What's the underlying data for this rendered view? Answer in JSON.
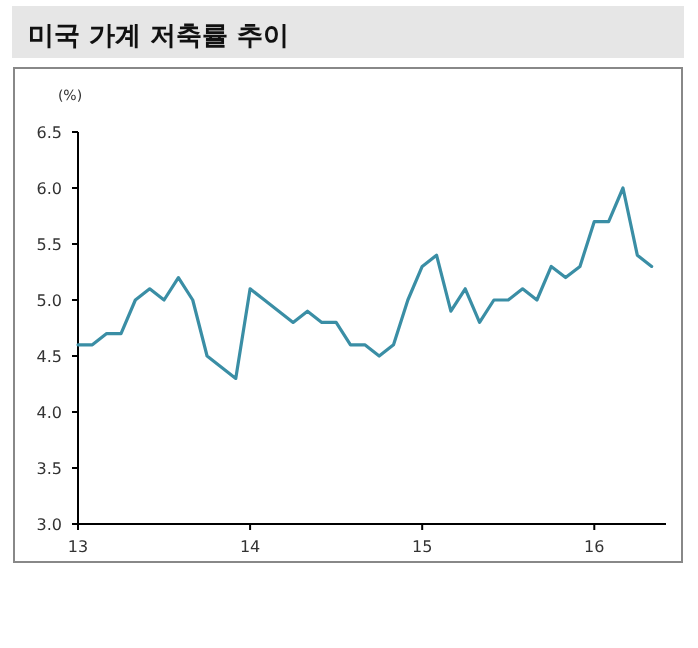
{
  "chart_data": {
    "type": "line",
    "title": "미국 가계 저축률 추이",
    "ylabel": "(%)",
    "x": [
      "2013-01",
      "2013-02",
      "2013-03",
      "2013-04",
      "2013-05",
      "2013-06",
      "2013-07",
      "2013-08",
      "2013-09",
      "2013-10",
      "2013-11",
      "2013-12",
      "2014-01",
      "2014-02",
      "2014-03",
      "2014-04",
      "2014-05",
      "2014-06",
      "2014-07",
      "2014-08",
      "2014-09",
      "2014-10",
      "2014-11",
      "2014-12",
      "2015-01",
      "2015-02",
      "2015-03",
      "2015-04",
      "2015-05",
      "2015-06",
      "2015-07",
      "2015-08",
      "2015-09",
      "2015-10",
      "2015-11",
      "2015-12",
      "2016-01",
      "2016-02",
      "2016-03",
      "2016-04",
      "2016-05"
    ],
    "series": [
      {
        "color": "#3a8ea5",
        "values": [
          4.6,
          4.6,
          4.7,
          4.7,
          5.0,
          5.1,
          5.0,
          5.2,
          5.0,
          4.5,
          4.4,
          4.3,
          5.1,
          5.0,
          4.9,
          4.8,
          4.9,
          4.8,
          4.8,
          4.6,
          4.6,
          4.5,
          4.6,
          5.0,
          5.3,
          5.4,
          4.9,
          5.1,
          4.8,
          5.0,
          5.0,
          5.1,
          5.0,
          5.3,
          5.2,
          5.3,
          5.7,
          5.7,
          6.0,
          5.4,
          5.3
        ]
      }
    ],
    "xlim": [
      "2013-01",
      "2016-06"
    ],
    "xticks": [
      {
        "value": "2013-01",
        "label": "13"
      },
      {
        "value": "2014-01",
        "label": "14"
      },
      {
        "value": "2015-01",
        "label": "15"
      },
      {
        "value": "2016-01",
        "label": "16"
      }
    ],
    "ylim": [
      3.0,
      6.5
    ],
    "yticks": [
      {
        "value": 3.0,
        "label": "3.0"
      },
      {
        "value": 3.5,
        "label": "3.5"
      },
      {
        "value": 4.0,
        "label": "4.0"
      },
      {
        "value": 4.5,
        "label": "4.5"
      },
      {
        "value": 5.0,
        "label": "5.0"
      },
      {
        "value": 5.5,
        "label": "5.5"
      },
      {
        "value": 6.0,
        "label": "6.0"
      },
      {
        "value": 6.5,
        "label": "6.5"
      }
    ],
    "grid": false,
    "marker": "none",
    "line_style": "solid"
  }
}
